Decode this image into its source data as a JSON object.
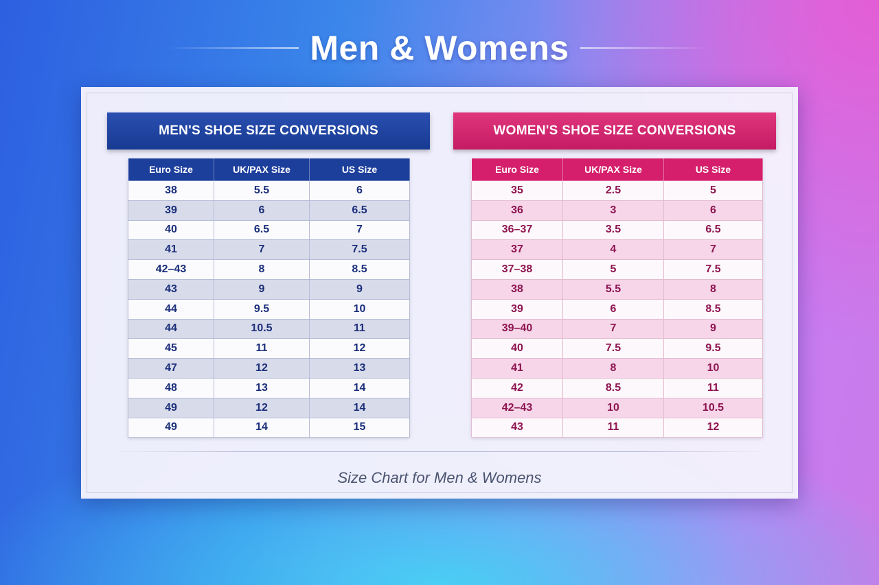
{
  "page": {
    "title": "Men & Womens",
    "caption": "Size Chart for Men & Womens"
  },
  "colors": {
    "men_accent": "#1d3f9c",
    "women_accent": "#d51f6c"
  },
  "men": {
    "heading": "MEN'S SHOE SIZE CONVERSIONS",
    "columns": [
      "Euro Size",
      "UK/PAX Size",
      "US Size"
    ],
    "rows": [
      [
        "38",
        "5.5",
        "6"
      ],
      [
        "39",
        "6",
        "6.5"
      ],
      [
        "40",
        "6.5",
        "7"
      ],
      [
        "41",
        "7",
        "7.5"
      ],
      [
        "42–43",
        "8",
        "8.5"
      ],
      [
        "43",
        "9",
        "9"
      ],
      [
        "44",
        "9.5",
        "10"
      ],
      [
        "44",
        "10.5",
        "11"
      ],
      [
        "45",
        "11",
        "12"
      ],
      [
        "47",
        "12",
        "13"
      ],
      [
        "48",
        "13",
        "14"
      ],
      [
        "49",
        "12",
        "14"
      ],
      [
        "49",
        "14",
        "15"
      ]
    ]
  },
  "women": {
    "heading": "WOMEN'S SHOE SIZE CONVERSIONS",
    "columns": [
      "Euro Size",
      "UK/PAX Size",
      "US Size"
    ],
    "rows": [
      [
        "35",
        "2.5",
        "5"
      ],
      [
        "36",
        "3",
        "6"
      ],
      [
        "36–37",
        "3.5",
        "6.5"
      ],
      [
        "37",
        "4",
        "7"
      ],
      [
        "37–38",
        "5",
        "7.5"
      ],
      [
        "38",
        "5.5",
        "8"
      ],
      [
        "39",
        "6",
        "8.5"
      ],
      [
        "39–40",
        "7",
        "9"
      ],
      [
        "40",
        "7.5",
        "9.5"
      ],
      [
        "41",
        "8",
        "10"
      ],
      [
        "42",
        "8.5",
        "11"
      ],
      [
        "42–43",
        "10",
        "10.5"
      ],
      [
        "43",
        "11",
        "12"
      ]
    ]
  }
}
